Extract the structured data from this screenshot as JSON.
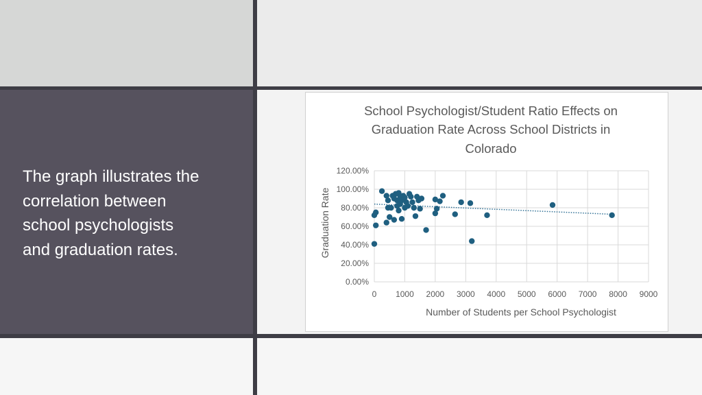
{
  "slide": {
    "caption_lines": [
      "The graph illustrates the",
      "correlation between",
      "school psychologists",
      "and graduation rates."
    ]
  },
  "colors": {
    "point": "#1f5f80",
    "trendline": "#2e6f94",
    "grid": "#d9d9d9",
    "text": "#595959"
  },
  "chart_data": {
    "type": "scatter",
    "title_lines": [
      "School Psychologist/Student Ratio Effects on",
      "Graduation Rate Across School Districts in",
      "Colorado"
    ],
    "xlabel": "Number of Students per School Psychologist",
    "ylabel": "Graduation Rate",
    "xlim": [
      0,
      9000
    ],
    "ylim": [
      0,
      120
    ],
    "x_ticks": [
      "0",
      "1000",
      "2000",
      "3000",
      "4000",
      "5000",
      "6000",
      "7000",
      "8000",
      "9000"
    ],
    "y_ticks": [
      "0.00%",
      "20.00%",
      "40.00%",
      "60.00%",
      "80.00%",
      "100.00%",
      "120.00%"
    ],
    "grid": true,
    "legend": "none",
    "trendline": {
      "x": [
        0,
        7800
      ],
      "y": [
        84,
        73
      ]
    },
    "points": [
      {
        "x": 0,
        "y": 41
      },
      {
        "x": 0,
        "y": 72
      },
      {
        "x": 50,
        "y": 61
      },
      {
        "x": 50,
        "y": 75
      },
      {
        "x": 250,
        "y": 98
      },
      {
        "x": 400,
        "y": 93
      },
      {
        "x": 400,
        "y": 64
      },
      {
        "x": 450,
        "y": 80
      },
      {
        "x": 450,
        "y": 88
      },
      {
        "x": 500,
        "y": 70
      },
      {
        "x": 550,
        "y": 80
      },
      {
        "x": 600,
        "y": 93
      },
      {
        "x": 650,
        "y": 90
      },
      {
        "x": 650,
        "y": 67
      },
      {
        "x": 700,
        "y": 95
      },
      {
        "x": 750,
        "y": 82
      },
      {
        "x": 750,
        "y": 88
      },
      {
        "x": 800,
        "y": 96
      },
      {
        "x": 800,
        "y": 77
      },
      {
        "x": 850,
        "y": 84
      },
      {
        "x": 850,
        "y": 92
      },
      {
        "x": 900,
        "y": 88
      },
      {
        "x": 900,
        "y": 68
      },
      {
        "x": 950,
        "y": 93
      },
      {
        "x": 1000,
        "y": 80
      },
      {
        "x": 1000,
        "y": 91
      },
      {
        "x": 1050,
        "y": 86
      },
      {
        "x": 1100,
        "y": 82
      },
      {
        "x": 1150,
        "y": 95
      },
      {
        "x": 1200,
        "y": 92
      },
      {
        "x": 1250,
        "y": 86
      },
      {
        "x": 1300,
        "y": 80
      },
      {
        "x": 1350,
        "y": 71
      },
      {
        "x": 1400,
        "y": 92
      },
      {
        "x": 1450,
        "y": 88
      },
      {
        "x": 1500,
        "y": 79
      },
      {
        "x": 1550,
        "y": 90
      },
      {
        "x": 1700,
        "y": 56
      },
      {
        "x": 2000,
        "y": 89
      },
      {
        "x": 2000,
        "y": 74
      },
      {
        "x": 2050,
        "y": 79
      },
      {
        "x": 2150,
        "y": 87
      },
      {
        "x": 2250,
        "y": 93
      },
      {
        "x": 2650,
        "y": 73
      },
      {
        "x": 2850,
        "y": 86
      },
      {
        "x": 3150,
        "y": 85
      },
      {
        "x": 3200,
        "y": 44
      },
      {
        "x": 3700,
        "y": 72
      },
      {
        "x": 5850,
        "y": 83
      },
      {
        "x": 7800,
        "y": 72
      }
    ]
  }
}
